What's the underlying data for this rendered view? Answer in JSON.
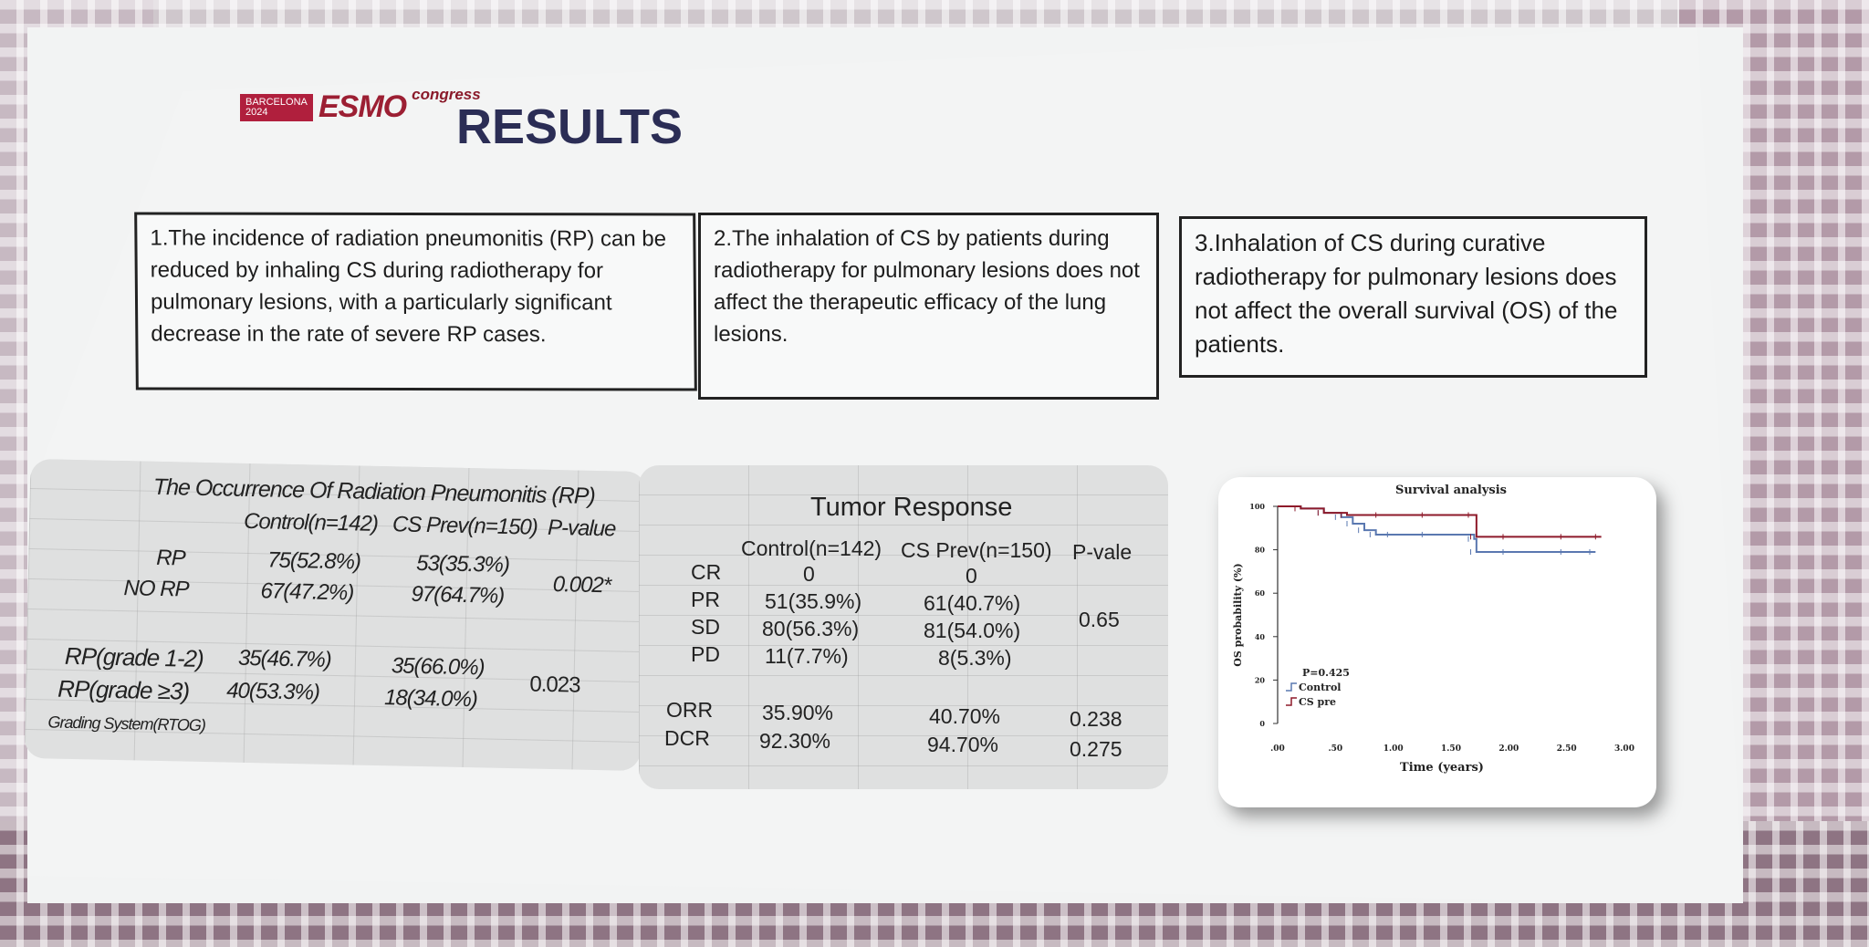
{
  "header": {
    "logo_city": "BARCELONA 2024",
    "logo_esmo": "ESMO",
    "logo_congress": "congress",
    "title": "RESULTS"
  },
  "findings": [
    "1.The incidence of radiation pneumonitis (RP) can be reduced by inhaling CS during radiotherapy for pulmonary lesions, with a particularly significant decrease in the rate of severe RP cases.",
    "2.The inhalation of CS by patients during radiotherapy for pulmonary lesions does not affect the therapeutic efficacy of the lung lesions.",
    "3.Inhalation of CS during curative radiotherapy for pulmonary lesions does not affect the overall survival (OS) of the patients."
  ],
  "rp_table": {
    "title": "The Occurrence Of Radiation Pneumonitis (RP)",
    "headers": [
      "Control(n=142)",
      "CS Prev(n=150)",
      "P-value"
    ],
    "rows": [
      {
        "label": "RP",
        "control": "75(52.8%)",
        "cs": "53(35.3%)"
      },
      {
        "label": "NO RP",
        "control": "67(47.2%)",
        "cs": "97(64.7%)"
      },
      {
        "label": "RP(grade 1-2)",
        "control": "35(46.7%)",
        "cs": "35(66.0%)"
      },
      {
        "label": "RP(grade ≥3)",
        "control": "40(53.3%)",
        "cs": "18(34.0%)"
      }
    ],
    "p1": "0.002*",
    "p2": "0.023",
    "footnote": "Grading System(RTOG)"
  },
  "tumor_table": {
    "title": "Tumor Response",
    "headers": [
      "Control(n=142)",
      "CS Prev(n=150)",
      "P-vale"
    ],
    "rows": [
      {
        "label": "CR",
        "control": "0",
        "cs": "0"
      },
      {
        "label": "PR",
        "control": "51(35.9%)",
        "cs": "61(40.7%)"
      },
      {
        "label": "SD",
        "control": "80(56.3%)",
        "cs": "81(54.0%)"
      },
      {
        "label": "PD",
        "control": "11(7.7%)",
        "cs": "8(5.3%)"
      },
      {
        "label": "ORR",
        "control": "35.90%",
        "cs": "40.70%",
        "p": "0.238"
      },
      {
        "label": "DCR",
        "control": "92.30%",
        "cs": "94.70%",
        "p": "0.275"
      }
    ],
    "p_main": "0.65"
  },
  "chart_data": {
    "type": "line",
    "title": "Survival analysis",
    "xlabel": "Time (years)",
    "ylabel": "OS probability (%)",
    "xlim": [
      0,
      3
    ],
    "ylim": [
      0,
      100
    ],
    "x_ticks": [
      ".00",
      ".50",
      "1.00",
      "1.50",
      "2.00",
      "2.50",
      "3.00"
    ],
    "y_ticks": [
      "0",
      "20",
      "40",
      "60",
      "80",
      "100"
    ],
    "p_value": "P=0.425",
    "series": [
      {
        "name": "Control",
        "color": "#5a78b0",
        "points": [
          [
            0,
            100
          ],
          [
            0.2,
            99
          ],
          [
            0.4,
            97
          ],
          [
            0.55,
            95
          ],
          [
            0.65,
            92
          ],
          [
            0.75,
            89
          ],
          [
            0.85,
            87
          ],
          [
            1.0,
            87
          ],
          [
            1.3,
            87
          ],
          [
            1.7,
            85
          ],
          [
            1.72,
            79
          ],
          [
            2.0,
            79
          ],
          [
            2.5,
            79
          ],
          [
            2.75,
            79
          ]
        ]
      },
      {
        "name": "CS pre",
        "color": "#8e1a2a",
        "points": [
          [
            0,
            100
          ],
          [
            0.2,
            99
          ],
          [
            0.4,
            97
          ],
          [
            0.6,
            96
          ],
          [
            0.9,
            96
          ],
          [
            1.3,
            96
          ],
          [
            1.7,
            96
          ],
          [
            1.72,
            86
          ],
          [
            2.0,
            86
          ],
          [
            2.5,
            86
          ],
          [
            2.8,
            86
          ]
        ]
      }
    ]
  }
}
